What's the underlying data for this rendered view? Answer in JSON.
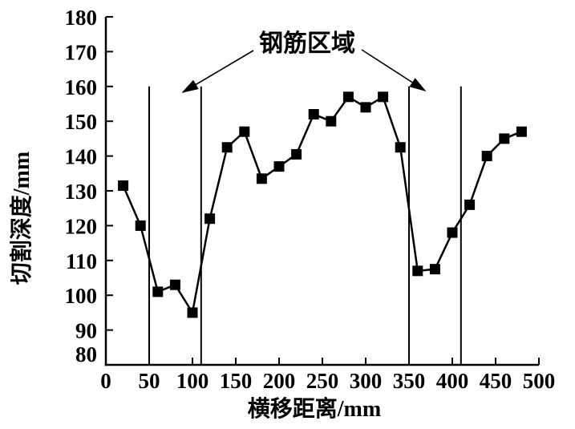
{
  "figure": {
    "background": "#ffffff",
    "foreground": "#000000"
  },
  "chart_data": {
    "type": "line",
    "title": "",
    "xlabel": "横移距离/mm",
    "ylabel": "切割深度/mm",
    "xlim": [
      0,
      500
    ],
    "ylim": [
      80,
      180
    ],
    "x_ticks": [
      0,
      50,
      100,
      150,
      200,
      250,
      300,
      350,
      400,
      450,
      500
    ],
    "y_ticks": [
      80,
      90,
      100,
      110,
      120,
      130,
      140,
      150,
      160,
      170,
      180
    ],
    "grid": false,
    "legend": false,
    "series": [
      {
        "marker": "square",
        "color": "#000000",
        "x": [
          20,
          40,
          60,
          80,
          100,
          120,
          140,
          160,
          180,
          200,
          220,
          240,
          260,
          280,
          300,
          320,
          340,
          360,
          380,
          400,
          420,
          440,
          460,
          480
        ],
        "y": [
          131.5,
          120,
          101,
          103,
          95,
          122,
          142.5,
          147,
          133.5,
          137,
          140.5,
          152,
          150,
          157,
          154,
          157,
          142.5,
          107,
          107.5,
          118,
          126,
          140,
          145,
          147
        ]
      }
    ],
    "annotation": {
      "label": "钢筋区域",
      "region_boundaries_x": [
        50,
        110,
        350,
        410
      ],
      "region_line_top_y": 160
    }
  }
}
